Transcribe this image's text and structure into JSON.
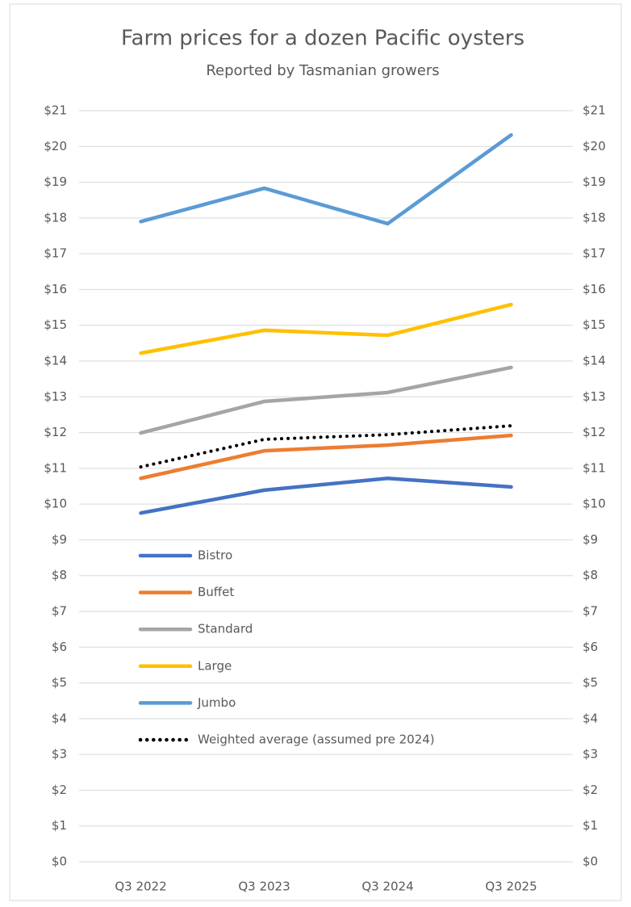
{
  "chart_data": {
    "type": "line",
    "title": "Farm prices for a dozen Pacific oysters",
    "subtitle": "Reported by Tasmanian growers",
    "categories": [
      "Q3 2022",
      "Q3 2023",
      "Q3 2024",
      "Q3 2025"
    ],
    "series": [
      {
        "name": "Bistro",
        "color": "#4472c4",
        "values": [
          9.75,
          10.39,
          10.72,
          10.48
        ]
      },
      {
        "name": "Buffet",
        "color": "#ed7d31",
        "values": [
          10.72,
          11.49,
          11.65,
          11.92
        ]
      },
      {
        "name": "Standard",
        "color": "#a5a5a5",
        "values": [
          11.99,
          12.87,
          13.12,
          13.82
        ]
      },
      {
        "name": "Large",
        "color": "#ffc000",
        "values": [
          14.22,
          14.86,
          14.72,
          15.58
        ]
      },
      {
        "name": "Jumbo",
        "color": "#5b9bd5",
        "values": [
          17.9,
          18.83,
          17.84,
          20.32
        ]
      },
      {
        "name": "Weighted average (assumed pre 2024)",
        "color": "#000000",
        "dash": "dotted",
        "values": [
          11.04,
          11.81,
          11.94,
          12.19
        ]
      }
    ],
    "ylim": [
      0,
      21
    ],
    "yticks": [
      {
        "value": 0,
        "label": "$0"
      },
      {
        "value": 1,
        "label": "$1"
      },
      {
        "value": 2,
        "label": "$2"
      },
      {
        "value": 3,
        "label": "$3"
      },
      {
        "value": 4,
        "label": "$4"
      },
      {
        "value": 5,
        "label": "$5"
      },
      {
        "value": 6,
        "label": "$6"
      },
      {
        "value": 7,
        "label": "$7"
      },
      {
        "value": 8,
        "label": "$8"
      },
      {
        "value": 9,
        "label": "$9"
      },
      {
        "value": 10,
        "label": "$10"
      },
      {
        "value": 11,
        "label": "$11"
      },
      {
        "value": 12,
        "label": "$12"
      },
      {
        "value": 13,
        "label": "$13"
      },
      {
        "value": 14,
        "label": "$14"
      },
      {
        "value": 15,
        "label": "$15"
      },
      {
        "value": 16,
        "label": "$16"
      },
      {
        "value": 17,
        "label": "$17"
      },
      {
        "value": 18,
        "label": "$18"
      },
      {
        "value": 19,
        "label": "$19"
      },
      {
        "value": 20,
        "label": "$20"
      },
      {
        "value": 21,
        "label": "$21"
      }
    ],
    "y2lim": [
      0,
      21
    ],
    "y2ticks": [
      {
        "value": 0,
        "label": "$0"
      },
      {
        "value": 1,
        "label": "$1"
      },
      {
        "value": 2,
        "label": "$2"
      },
      {
        "value": 3,
        "label": "$3"
      },
      {
        "value": 4,
        "label": "$4"
      },
      {
        "value": 5,
        "label": "$5"
      },
      {
        "value": 6,
        "label": "$6"
      },
      {
        "value": 7,
        "label": "$7"
      },
      {
        "value": 8,
        "label": "$8"
      },
      {
        "value": 9,
        "label": "$9"
      },
      {
        "value": 10,
        "label": "$10"
      },
      {
        "value": 11,
        "label": "$11"
      },
      {
        "value": 12,
        "label": "$12"
      },
      {
        "value": 13,
        "label": "$13"
      },
      {
        "value": 14,
        "label": "$14"
      },
      {
        "value": 15,
        "label": "$15"
      },
      {
        "value": 16,
        "label": "$16"
      },
      {
        "value": 17,
        "label": "$17"
      },
      {
        "value": 18,
        "label": "$18"
      },
      {
        "value": 19,
        "label": "$19"
      },
      {
        "value": 20,
        "label": "$20"
      },
      {
        "value": 21,
        "label": "$21"
      }
    ],
    "grid": true,
    "legend": "lower left"
  }
}
